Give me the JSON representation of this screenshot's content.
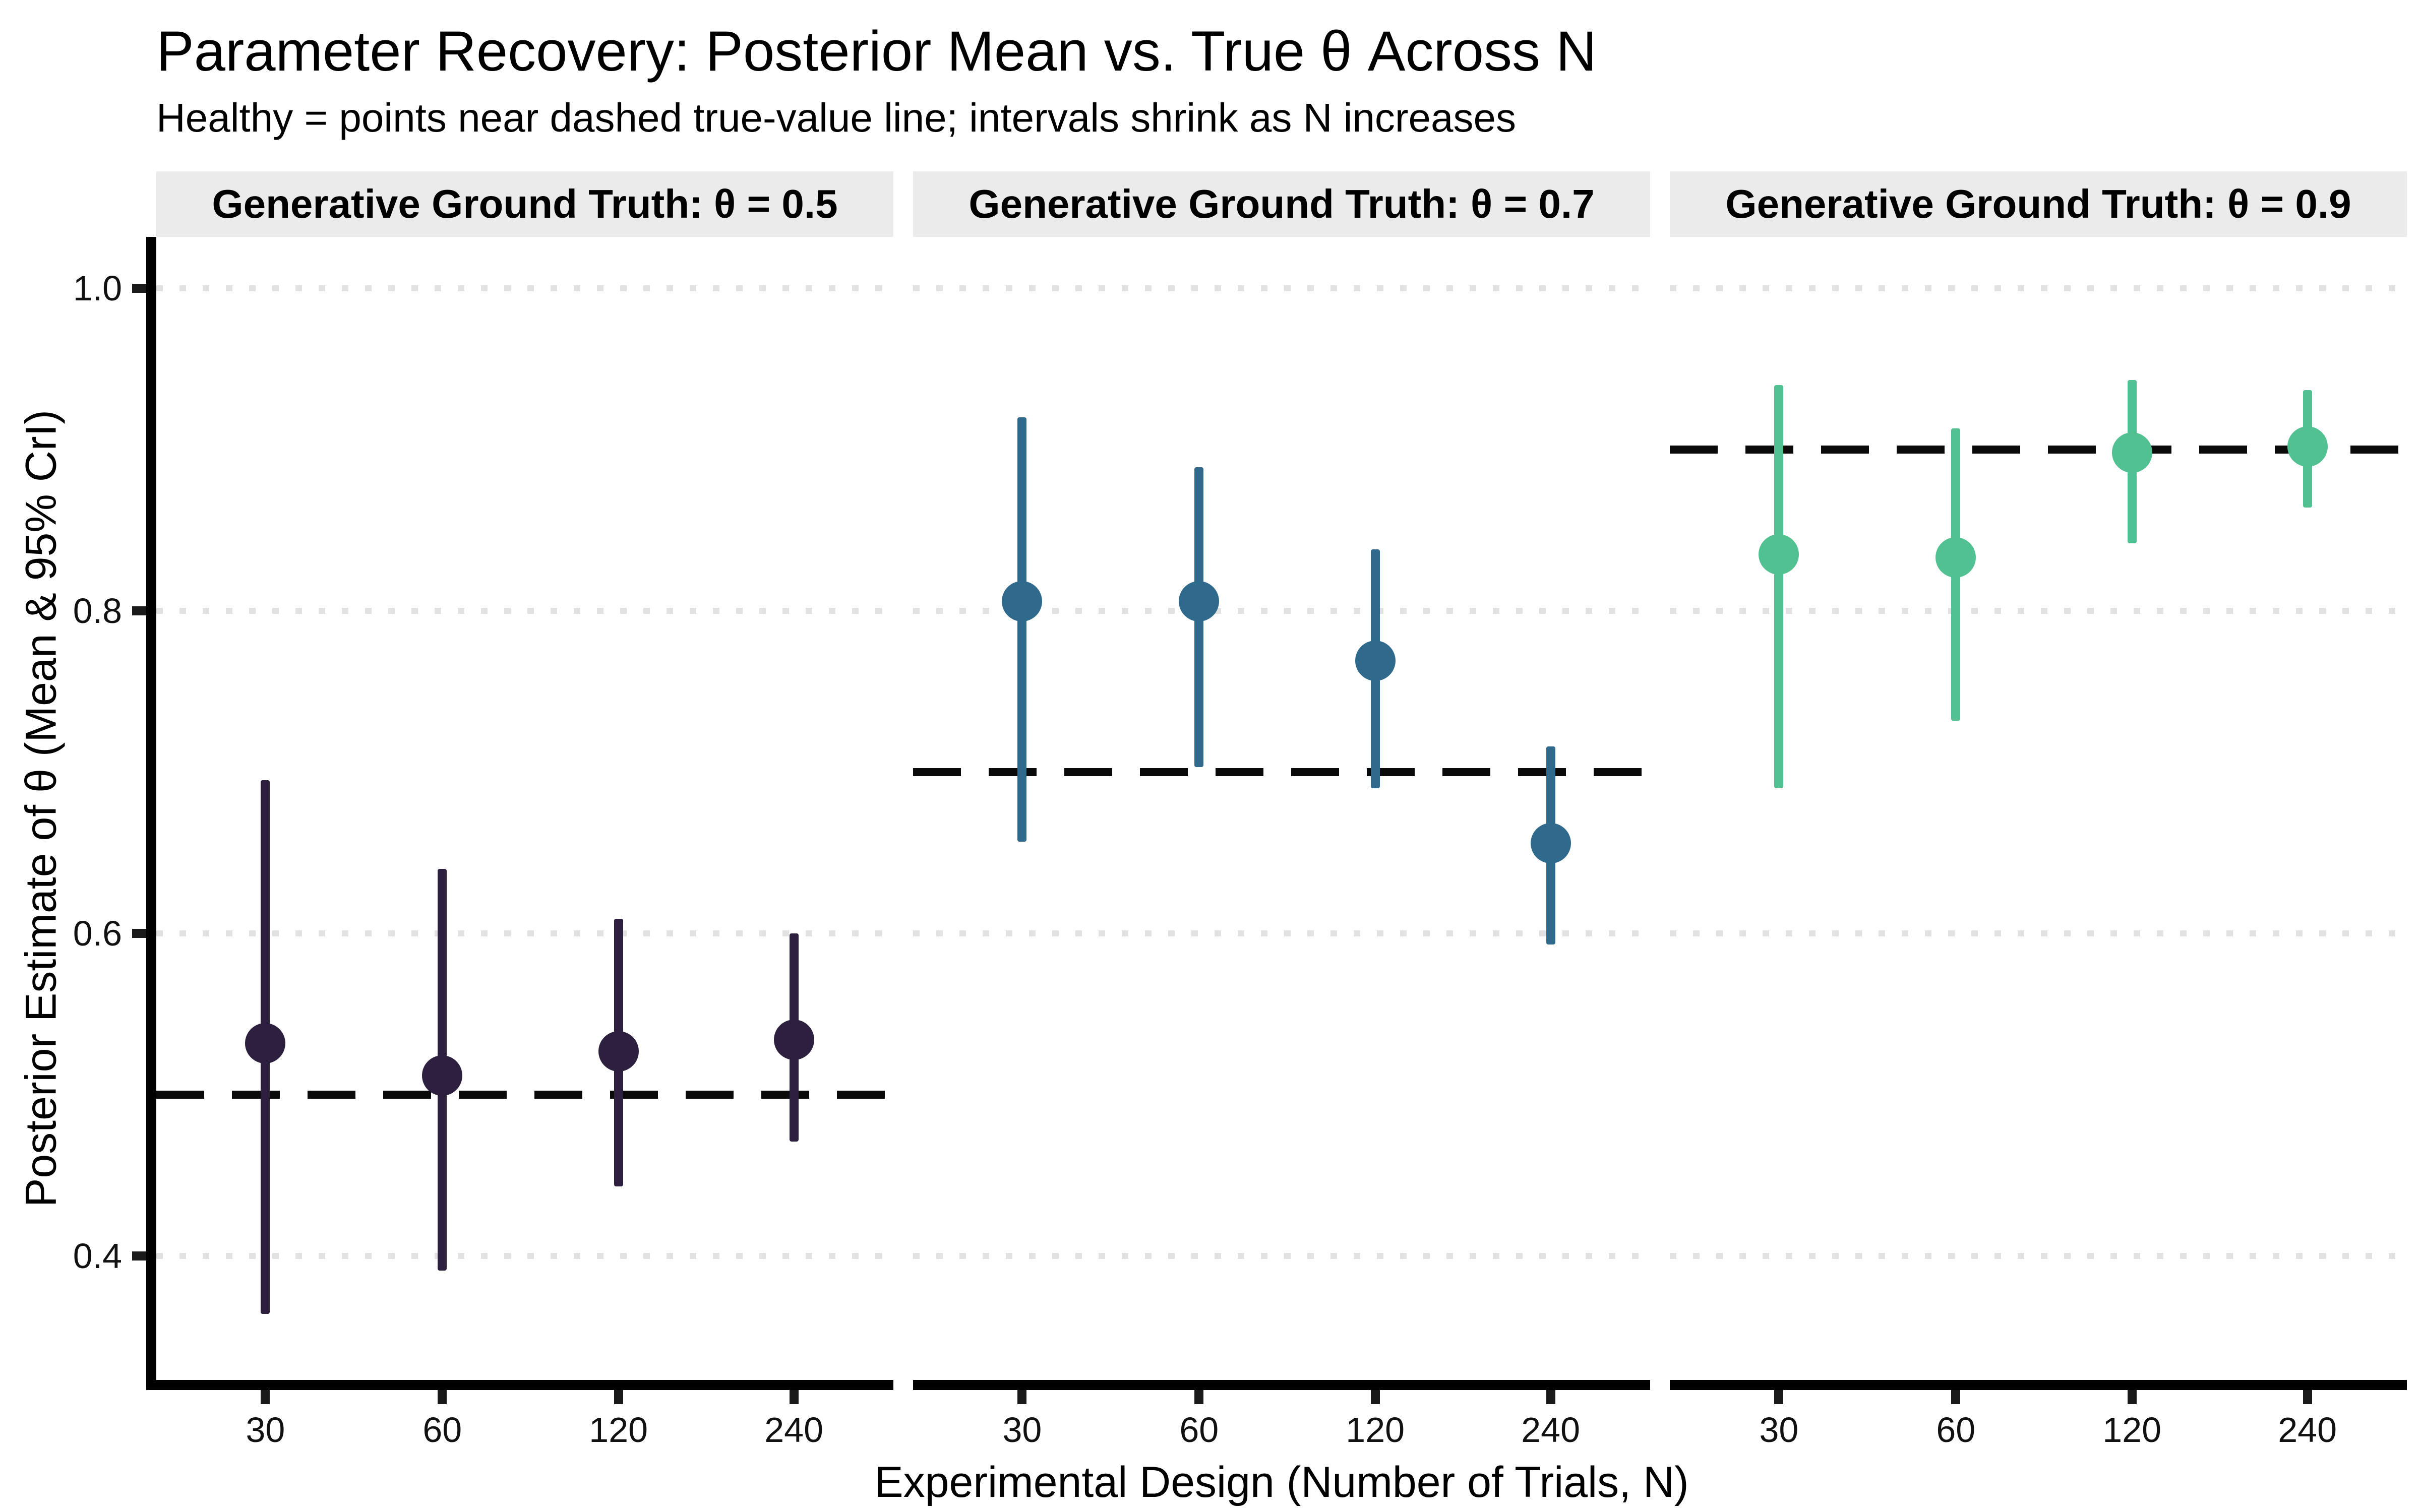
{
  "title": "Parameter Recovery: Posterior Mean vs. True θ Across N",
  "subtitle": "Healthy = points near dashed true-value line; intervals shrink as N increases",
  "chart_data": {
    "type": "scatter",
    "geom": "pointrange-with-95CrI",
    "xlabel": "Experimental Design (Number of Trials, N)",
    "ylabel": "Posterior Estimate of θ (Mean & 95% CrI)",
    "categories": [
      "30",
      "60",
      "120",
      "240"
    ],
    "y_ticks": [
      1.0,
      0.8,
      0.6,
      0.4
    ],
    "y_tick_labels": [
      "1.0",
      "0.8",
      "0.6",
      "0.4"
    ],
    "ylim": [
      0.323,
      1.032
    ],
    "grid": "horizontal dotted at y ticks",
    "legend": "none",
    "truth_line_style": "dashed black",
    "facets": [
      {
        "label": "Generative Ground Truth: θ = 0.5",
        "true_theta": 0.5,
        "color": "#2D1F3E",
        "points": [
          {
            "n": "30",
            "mean": 0.532,
            "lo": 0.364,
            "hi": 0.695
          },
          {
            "n": "60",
            "mean": 0.512,
            "lo": 0.391,
            "hi": 0.64
          },
          {
            "n": "120",
            "mean": 0.527,
            "lo": 0.443,
            "hi": 0.609
          },
          {
            "n": "240",
            "mean": 0.534,
            "lo": 0.471,
            "hi": 0.6
          }
        ]
      },
      {
        "label": "Generative Ground Truth: θ = 0.7",
        "true_theta": 0.7,
        "color": "#2F6A8D",
        "points": [
          {
            "n": "30",
            "mean": 0.806,
            "lo": 0.657,
            "hi": 0.92
          },
          {
            "n": "60",
            "mean": 0.806,
            "lo": 0.703,
            "hi": 0.889
          },
          {
            "n": "120",
            "mean": 0.769,
            "lo": 0.69,
            "hi": 0.838
          },
          {
            "n": "240",
            "mean": 0.656,
            "lo": 0.593,
            "hi": 0.716
          }
        ]
      },
      {
        "label": "Generative Ground Truth: θ = 0.9",
        "true_theta": 0.9,
        "color": "#52C192",
        "points": [
          {
            "n": "30",
            "mean": 0.835,
            "lo": 0.69,
            "hi": 0.94
          },
          {
            "n": "60",
            "mean": 0.833,
            "lo": 0.732,
            "hi": 0.913
          },
          {
            "n": "120",
            "mean": 0.898,
            "lo": 0.842,
            "hi": 0.943
          },
          {
            "n": "240",
            "mean": 0.902,
            "lo": 0.864,
            "hi": 0.937
          }
        ]
      }
    ],
    "colors": {
      "strip_background": "#EBEBEB",
      "gridline": "#E2E2E2",
      "truth_line": "#0A0A0A",
      "axis": "#000000",
      "facet_point_colors": [
        "#2D1F3E",
        "#2F6A8D",
        "#52C192"
      ]
    }
  }
}
